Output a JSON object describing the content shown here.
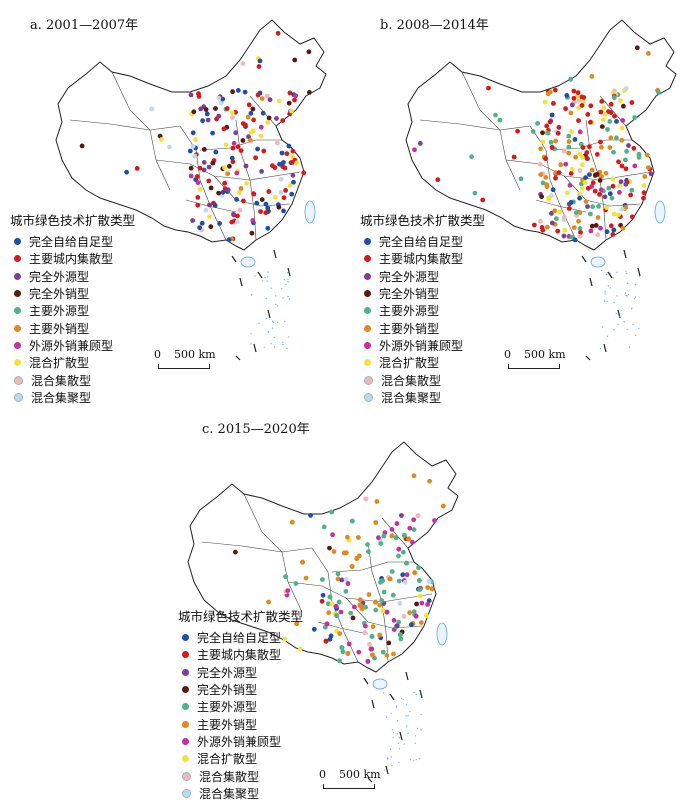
{
  "panels": [
    {
      "title": "a. 2001—2007年",
      "legend_title": "城市绿色技术扩散类型",
      "scale_zero": "0",
      "scale_label": "500 km"
    },
    {
      "title": "b. 2008—2014年",
      "legend_title": "城市绿色技术扩散类型",
      "scale_zero": "0",
      "scale_label": "500 km"
    },
    {
      "title": "c. 2015—2020年",
      "legend_title": "城市绿色技术扩散类型",
      "scale_zero": "0",
      "scale_label": "500 km"
    }
  ],
  "legend_items": [
    {
      "label": "完全自给自足型",
      "color": "#1f4fa8"
    },
    {
      "label": "主要城内集散型",
      "color": "#d7191c"
    },
    {
      "label": "完全外源型",
      "color": "#7b3f98"
    },
    {
      "label": "完全外销型",
      "color": "#5a1a12"
    },
    {
      "label": "主要外源型",
      "color": "#4fb38a"
    },
    {
      "label": "主要外销型",
      "color": "#e08a1e"
    },
    {
      "label": "外源外销兼顾型",
      "color": "#c2329a"
    },
    {
      "label": "混合扩散型",
      "color": "#f2e33c"
    },
    {
      "label": "混合集散型",
      "color": "#f4b6b9"
    },
    {
      "label": "混合集聚型",
      "color": "#bcd9f0"
    }
  ]
}
